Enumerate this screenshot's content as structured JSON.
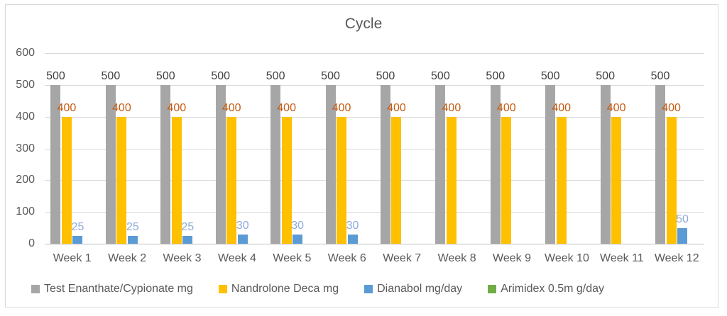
{
  "chart_data": {
    "type": "bar",
    "title": "Cycle",
    "categories": [
      "Week 1",
      "Week 2",
      "Week 3",
      "Week 4",
      "Week 5",
      "Week 6",
      "Week 7",
      "Week 8",
      "Week 9",
      "Week 10",
      "Week 11",
      "Week 12"
    ],
    "series": [
      {
        "name": "Test Enanthate/Cypionate mg",
        "color": "#a6a6a6",
        "label_color": "#404040",
        "values": [
          500,
          500,
          500,
          500,
          500,
          500,
          500,
          500,
          500,
          500,
          500,
          500
        ]
      },
      {
        "name": "Nandrolone Deca mg",
        "color": "#ffc000",
        "label_color": "#c55a11",
        "values": [
          400,
          400,
          400,
          400,
          400,
          400,
          400,
          400,
          400,
          400,
          400,
          400
        ]
      },
      {
        "name": "Dianabol mg/day",
        "color": "#5b9bd5",
        "label_color": "#8eaadb",
        "values": [
          25,
          25,
          25,
          30,
          30,
          30,
          0,
          0,
          0,
          0,
          0,
          50
        ]
      },
      {
        "name": "Arimidex 0.5m g/day",
        "color": "#70ad47",
        "label_color": "#a9c98f",
        "values": [
          0,
          0,
          0,
          0,
          0,
          0,
          0,
          0,
          0,
          0,
          0,
          0
        ]
      }
    ],
    "y_axis": {
      "min": 0,
      "max": 600,
      "step": 100,
      "tick_labels": [
        "0",
        "100",
        "200",
        "300",
        "400",
        "500",
        "600"
      ]
    },
    "grid": true,
    "legend_position": "bottom",
    "data_labels_shown_for_nonzero_only": true
  },
  "palette": {
    "text": "#595959",
    "gridline": "#d9d9d9",
    "axis_line": "#bfbfbf",
    "frame_border": "#d9d9d9",
    "background": "#ffffff"
  }
}
